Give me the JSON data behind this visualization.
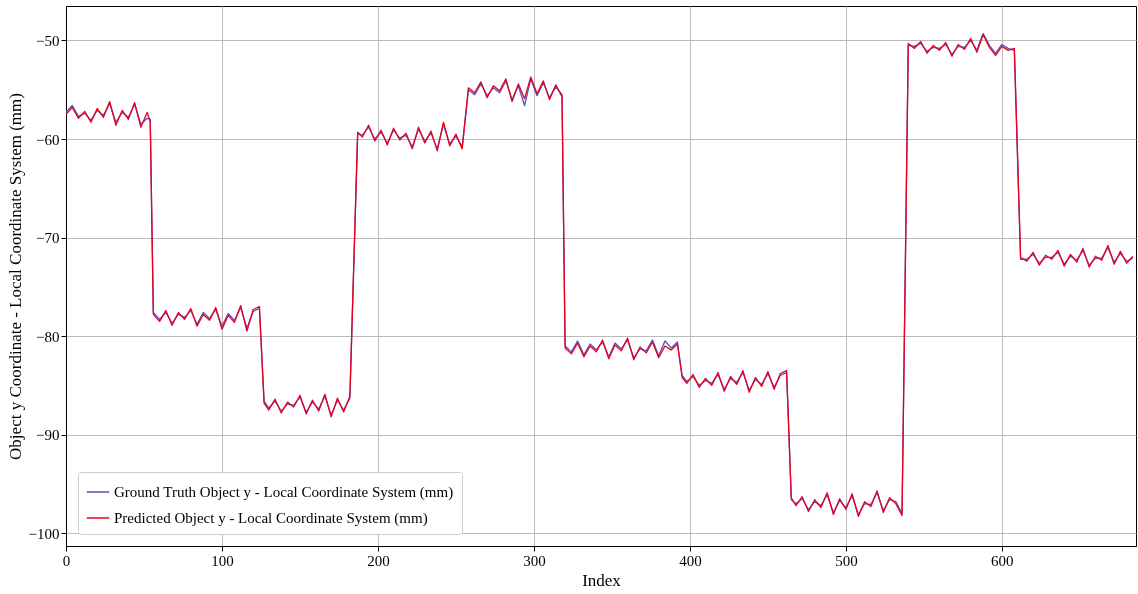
{
  "chart_data": {
    "type": "line",
    "xlabel": "Index",
    "ylabel": "Object y Coordinate - Local Coordinate System (mm)",
    "x": [
      0,
      4,
      8,
      12,
      16,
      20,
      24,
      28,
      32,
      36,
      40,
      44,
      48,
      52,
      54,
      56,
      60,
      64,
      68,
      72,
      76,
      80,
      84,
      88,
      92,
      96,
      100,
      104,
      108,
      112,
      116,
      120,
      124,
      127,
      130,
      134,
      138,
      142,
      146,
      150,
      154,
      158,
      162,
      166,
      170,
      174,
      178,
      182,
      187,
      190,
      194,
      198,
      202,
      206,
      210,
      214,
      218,
      222,
      226,
      230,
      234,
      238,
      242,
      246,
      250,
      254,
      258,
      262,
      266,
      270,
      274,
      278,
      282,
      286,
      290,
      294,
      298,
      302,
      306,
      310,
      314,
      318,
      320,
      324,
      328,
      332,
      336,
      340,
      344,
      348,
      352,
      356,
      360,
      364,
      368,
      372,
      376,
      380,
      384,
      388,
      392,
      395,
      398,
      402,
      406,
      410,
      414,
      418,
      422,
      426,
      430,
      434,
      438,
      442,
      446,
      450,
      454,
      458,
      462,
      465,
      468,
      472,
      476,
      480,
      484,
      488,
      492,
      496,
      500,
      504,
      508,
      512,
      516,
      520,
      524,
      528,
      532,
      536,
      540,
      544,
      548,
      552,
      556,
      560,
      564,
      568,
      572,
      576,
      580,
      584,
      588,
      592,
      596,
      600,
      604,
      608,
      612,
      616,
      620,
      624,
      628,
      632,
      636,
      640,
      644,
      648,
      652,
      656,
      660,
      664,
      668,
      672,
      676,
      680,
      684
    ],
    "series": [
      {
        "name": "Ground Truth Object y - Local Coordinate System (mm)",
        "color": "#5050c8",
        "values": [
          -57.3,
          -56.6,
          -57.7,
          -57.4,
          -58.1,
          -57.1,
          -57.6,
          -56.4,
          -58.3,
          -57.3,
          -57.8,
          -56.5,
          -58.5,
          -57.9,
          -58.0,
          -77.6,
          -78.3,
          -77.6,
          -78.7,
          -77.8,
          -78.1,
          -77.4,
          -78.8,
          -77.6,
          -78.2,
          -77.3,
          -79.0,
          -77.7,
          -78.4,
          -77.1,
          -79.2,
          -77.5,
          -77.2,
          -86.6,
          -87.3,
          -86.6,
          -87.6,
          -86.9,
          -87.0,
          -86.2,
          -87.7,
          -86.7,
          -87.4,
          -86.1,
          -88.0,
          -86.5,
          -87.5,
          -86.3,
          -59.5,
          -59.6,
          -58.8,
          -60.0,
          -59.3,
          -60.4,
          -59.1,
          -59.9,
          -59.6,
          -60.8,
          -59.0,
          -60.2,
          -59.4,
          -61.0,
          -58.5,
          -60.5,
          -59.7,
          -60.8,
          -55.0,
          -55.5,
          -54.4,
          -55.6,
          -54.8,
          -55.3,
          -54.1,
          -56.0,
          -54.6,
          -56.6,
          -53.9,
          -55.6,
          -54.3,
          -55.8,
          -54.7,
          -55.5,
          -81.0,
          -81.6,
          -80.5,
          -81.9,
          -80.8,
          -81.4,
          -80.6,
          -82.1,
          -80.7,
          -81.3,
          -80.4,
          -82.2,
          -81.3,
          -81.5,
          -80.4,
          -82.0,
          -80.5,
          -81.2,
          -80.6,
          -84.0,
          -84.6,
          -84.1,
          -85.0,
          -84.5,
          -84.8,
          -83.9,
          -85.4,
          -84.3,
          -84.7,
          -83.7,
          -85.5,
          -84.4,
          -84.9,
          -83.8,
          -85.2,
          -84.0,
          -83.7,
          -96.6,
          -97.0,
          -96.5,
          -97.6,
          -96.8,
          -97.2,
          -96.1,
          -97.9,
          -96.7,
          -97.4,
          -96.2,
          -98.1,
          -97.0,
          -97.1,
          -95.9,
          -97.7,
          -96.6,
          -96.8,
          -98.0,
          -50.5,
          -50.6,
          -50.3,
          -51.1,
          -50.7,
          -50.8,
          -50.4,
          -51.4,
          -50.6,
          -50.7,
          -50.0,
          -51.0,
          -49.3,
          -50.5,
          -51.3,
          -50.4,
          -50.8,
          -51.0,
          -72.2,
          -72.2,
          -71.7,
          -72.6,
          -72.0,
          -72.0,
          -71.5,
          -72.7,
          -71.9,
          -72.3,
          -71.3,
          -72.8,
          -72.1,
          -72.1,
          -71.0,
          -72.5,
          -71.6,
          -72.4,
          -72.1
        ]
      },
      {
        "name": "Predicted Object y - Local Coordinate System (mm)",
        "color": "#e8001c",
        "values": [
          -57.5,
          -56.8,
          -57.9,
          -57.2,
          -58.3,
          -56.9,
          -57.8,
          -56.2,
          -58.6,
          -57.1,
          -58.0,
          -56.3,
          -58.8,
          -57.3,
          -58.2,
          -77.8,
          -78.5,
          -77.4,
          -78.9,
          -77.6,
          -78.3,
          -77.2,
          -79.0,
          -77.8,
          -78.4,
          -77.1,
          -79.3,
          -77.9,
          -78.6,
          -76.9,
          -79.5,
          -77.3,
          -77.0,
          -86.8,
          -87.5,
          -86.4,
          -87.8,
          -86.7,
          -87.2,
          -86.0,
          -87.9,
          -86.5,
          -87.6,
          -85.9,
          -88.2,
          -86.3,
          -87.7,
          -86.1,
          -59.3,
          -59.8,
          -58.6,
          -60.2,
          -59.1,
          -60.6,
          -58.9,
          -60.1,
          -59.4,
          -61.0,
          -58.8,
          -60.4,
          -59.2,
          -61.2,
          -58.3,
          -60.7,
          -59.5,
          -61.0,
          -54.8,
          -55.3,
          -54.2,
          -55.8,
          -54.6,
          -55.1,
          -53.9,
          -56.2,
          -54.4,
          -55.9,
          -53.7,
          -55.4,
          -54.1,
          -56.0,
          -54.5,
          -55.7,
          -81.2,
          -81.8,
          -80.7,
          -82.1,
          -81.0,
          -81.6,
          -80.4,
          -82.3,
          -80.9,
          -81.5,
          -80.2,
          -82.4,
          -81.1,
          -81.7,
          -80.6,
          -82.2,
          -81.0,
          -81.4,
          -80.8,
          -84.2,
          -84.8,
          -83.9,
          -85.2,
          -84.3,
          -85.0,
          -83.7,
          -85.6,
          -84.1,
          -84.9,
          -83.5,
          -85.7,
          -84.2,
          -85.1,
          -83.6,
          -85.4,
          -83.8,
          -83.5,
          -96.4,
          -97.2,
          -96.3,
          -97.8,
          -96.6,
          -97.4,
          -95.9,
          -98.1,
          -96.5,
          -97.6,
          -96.0,
          -98.3,
          -96.8,
          -97.3,
          -95.7,
          -97.9,
          -96.4,
          -97.0,
          -98.2,
          -50.3,
          -50.8,
          -50.1,
          -51.3,
          -50.5,
          -51.0,
          -50.2,
          -51.6,
          -50.4,
          -50.9,
          -49.8,
          -51.2,
          -49.4,
          -50.7,
          -51.5,
          -50.6,
          -51.0,
          -50.8,
          -72.0,
          -72.4,
          -71.5,
          -72.8,
          -71.8,
          -72.2,
          -71.3,
          -72.9,
          -71.7,
          -72.5,
          -71.1,
          -73.0,
          -71.9,
          -72.3,
          -70.8,
          -72.7,
          -71.4,
          -72.6,
          -71.9
        ]
      }
    ],
    "xlim": [
      0,
      686
    ],
    "xticks": [
      0,
      100,
      200,
      300,
      400,
      500,
      600
    ],
    "ylim": [
      -101.3,
      -46.5
    ],
    "yticks": [
      -100,
      -90,
      -80,
      -70,
      -60,
      -50
    ],
    "grid": true,
    "legend": "bottom left",
    "line_style": "solid"
  }
}
